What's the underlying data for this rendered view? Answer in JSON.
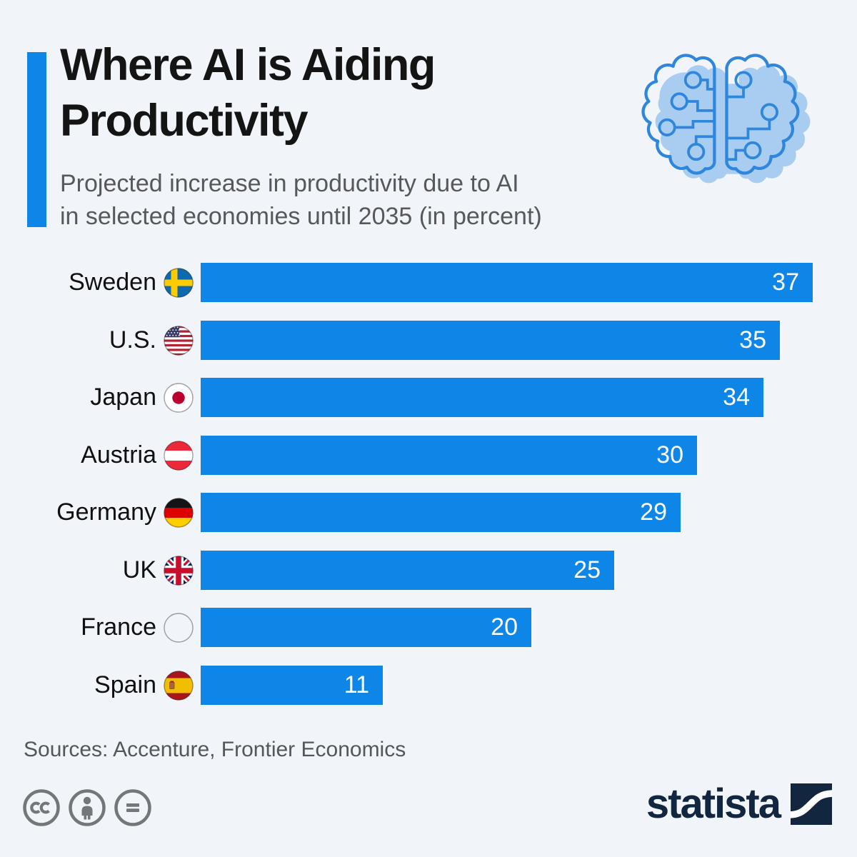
{
  "header": {
    "title_lines": [
      "Where AI is Aiding",
      "Productivity"
    ],
    "subtitle_lines": [
      "Projected increase in productivity due to AI",
      "in selected economies until 2035 (in percent)"
    ],
    "brain_icon": "circuit-brain-icon"
  },
  "chart_data": {
    "type": "bar",
    "orientation": "horizontal",
    "title": "Where AI is Aiding Productivity",
    "subtitle": "Projected increase in productivity due to AI in selected economies until 2035 (in percent)",
    "unit": "percent",
    "xlim": [
      0,
      37
    ],
    "categories": [
      "Sweden",
      "U.S.",
      "Japan",
      "Austria",
      "Germany",
      "UK",
      "France",
      "Spain"
    ],
    "values": [
      37,
      35,
      34,
      30,
      29,
      25,
      20,
      11
    ],
    "flags": [
      "se",
      "us",
      "jp",
      "at",
      "de",
      "gb",
      "fr",
      "es"
    ],
    "bar_color": "#0d86e8",
    "value_label_color": "#ffffff",
    "value_labels_inside": true,
    "grid": false,
    "legend": false
  },
  "footer": {
    "sources_label": "Sources: Accenture, Frontier Economics",
    "license_icons": [
      "cc-icon",
      "attribution-person-icon",
      "equals-icon"
    ],
    "brand_name": "statista"
  },
  "colors": {
    "background": "#f1f5f9",
    "accent_blue": "#0d86e8",
    "title_text": "#141414",
    "subtitle_text": "#57585c",
    "footer_text": "#54575a",
    "license_gray": "#72787a",
    "brand_navy": "#12263f",
    "brain_fill": "#a9ccf1",
    "brain_stroke": "#2e86dd"
  }
}
